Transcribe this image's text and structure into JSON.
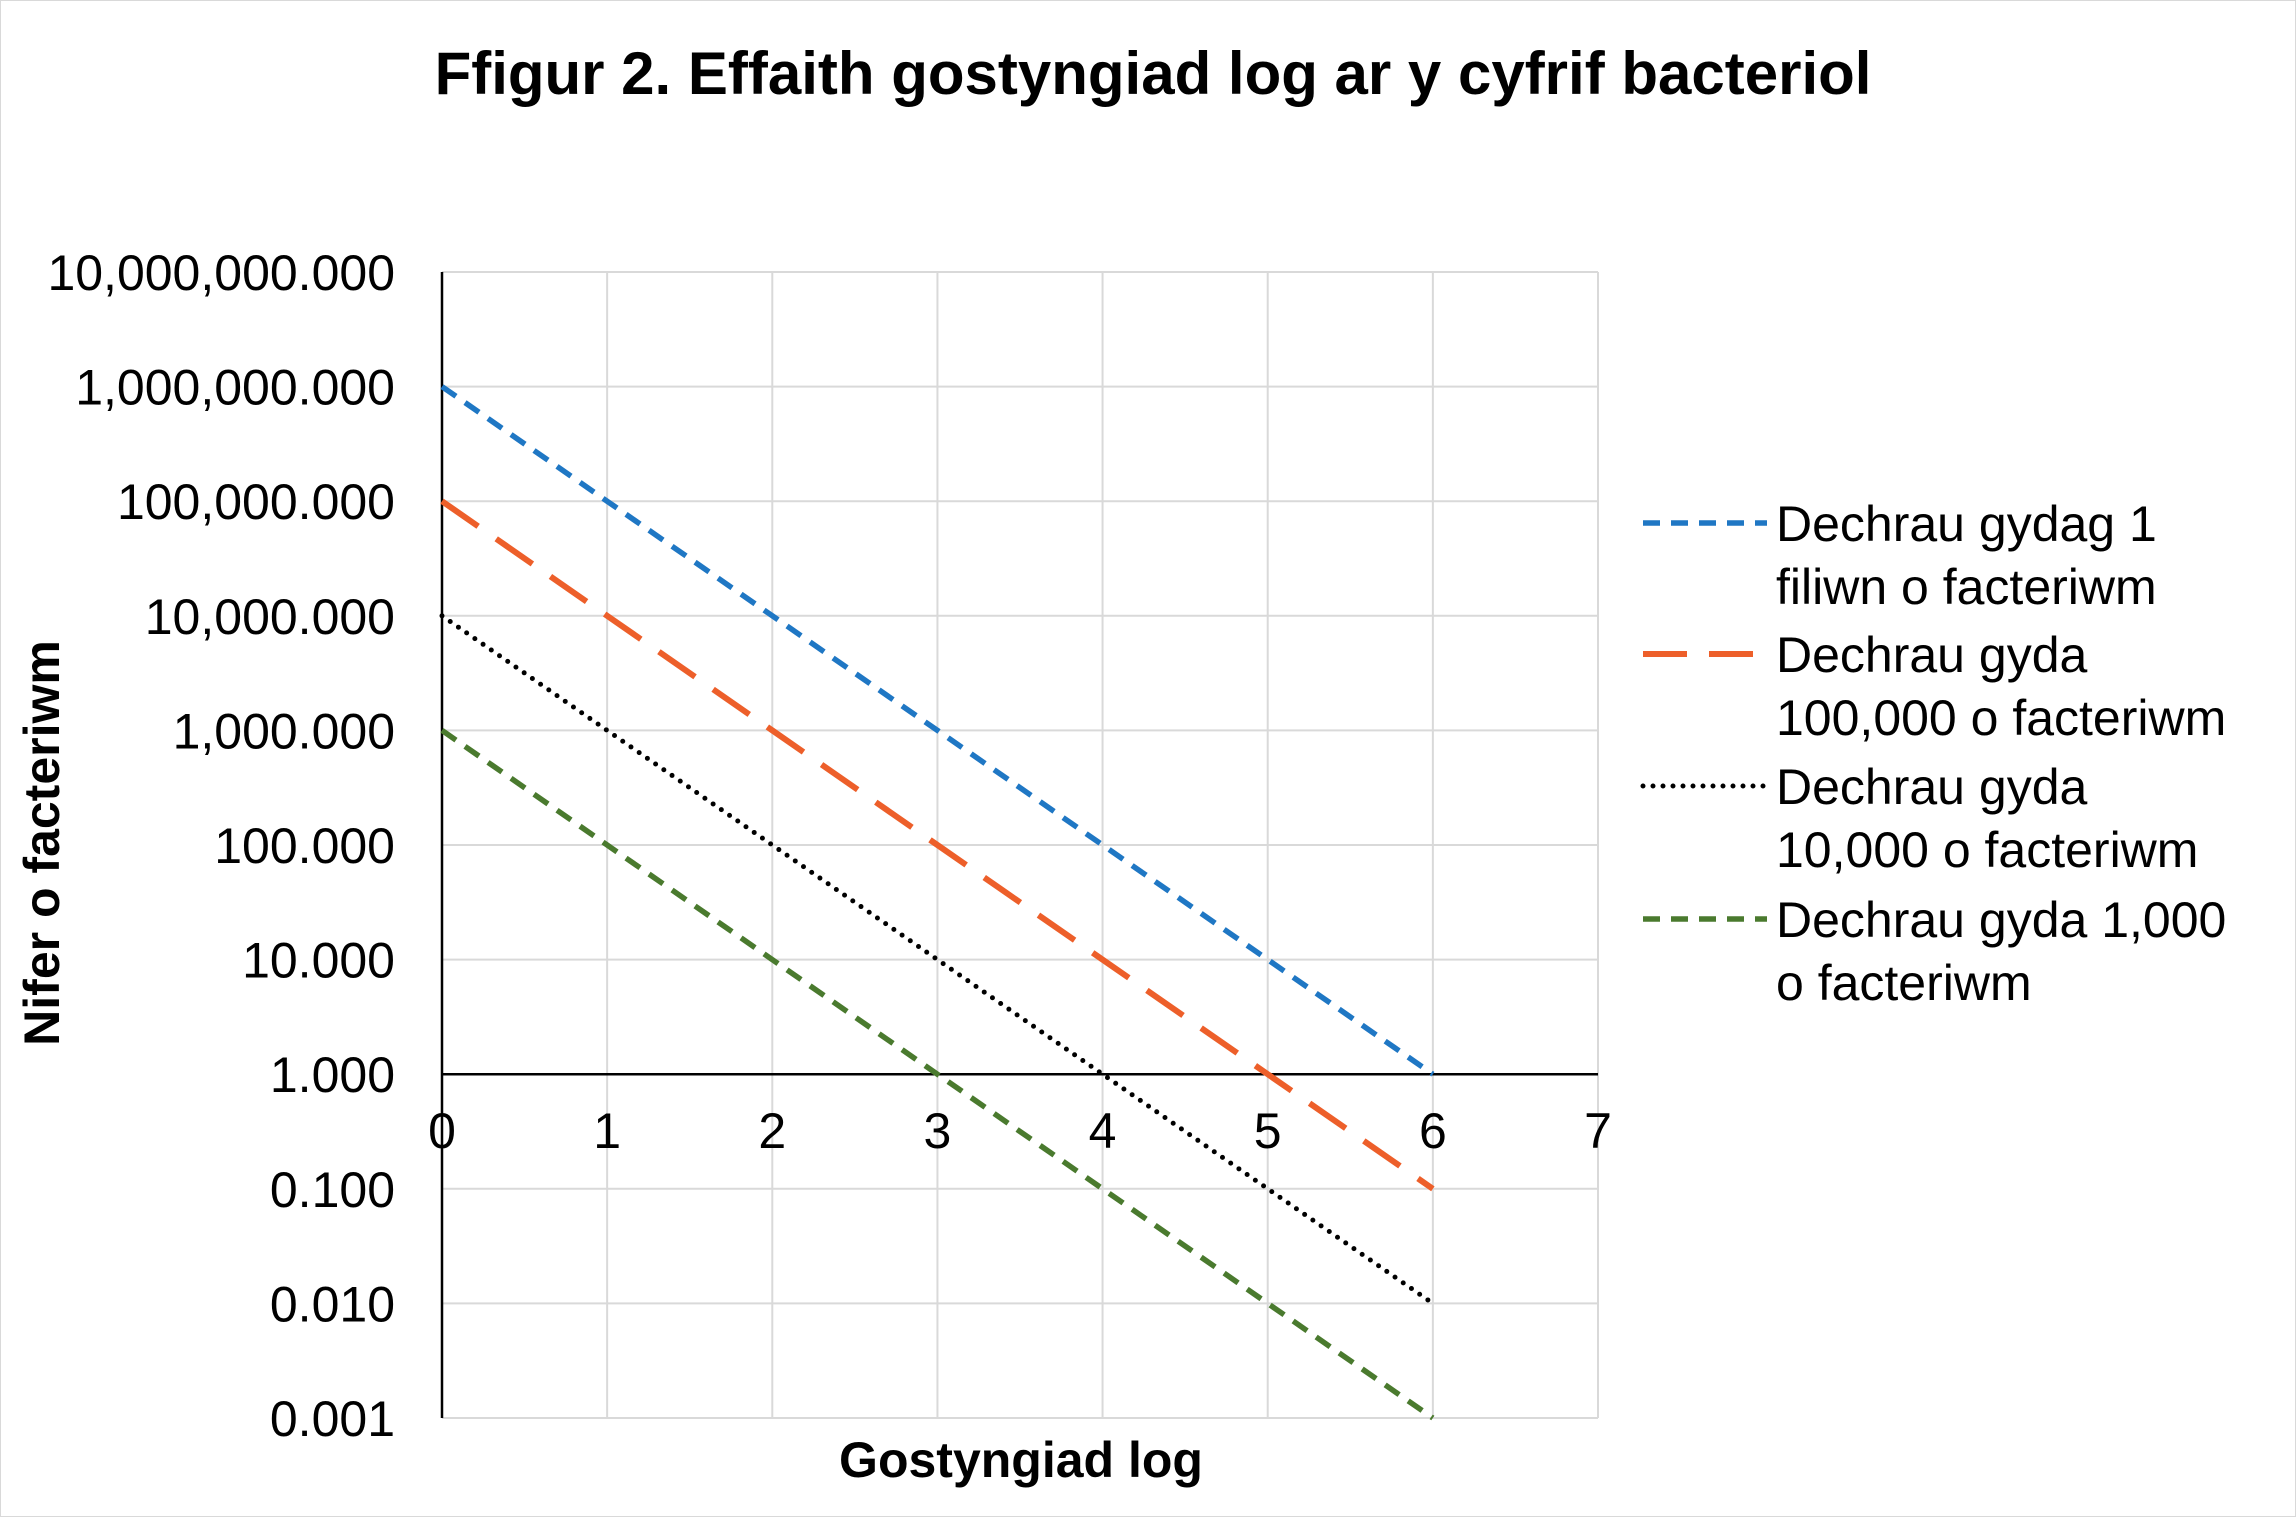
{
  "chart_data": {
    "type": "line",
    "title": "Ffigur 2. Effaith gostyngiad log ar y cyfrif bacteriol",
    "xlabel": "Gostyngiad log",
    "ylabel": "Nifer o facteriwm",
    "x_ticks": [
      "0",
      "1",
      "2",
      "3",
      "4",
      "5",
      "6",
      "7"
    ],
    "y_ticks": [
      "10,000,000.000",
      "1,000,000.000",
      "100,000.000",
      "10,000.000",
      "1,000.000",
      "100.000",
      "10.000",
      "1.000",
      "0.100",
      "0.010",
      "0.001"
    ],
    "xlim": [
      0,
      7
    ],
    "ylim": [
      0.001,
      10000000
    ],
    "yscale": "log",
    "x_axis_crosses_at": 1,
    "grid": true,
    "legend_position": "right",
    "x": [
      0,
      1,
      2,
      3,
      4,
      5,
      6
    ],
    "series": [
      {
        "name": "Dechrau gydag 1 filiwn o facteriwm",
        "legend_lines": [
          "Dechrau gydag 1",
          "filiwn o facteriwm"
        ],
        "color": "#1f77c4",
        "dash": "short-dash",
        "values": [
          1000000,
          100000,
          10000,
          1000,
          100,
          10,
          1
        ]
      },
      {
        "name": "Dechrau gyda 100,000 o facteriwm",
        "legend_lines": [
          "Dechrau gyda",
          "100,000 o facteriwm"
        ],
        "color": "#ed5f2a",
        "dash": "long-dash",
        "values": [
          100000,
          10000,
          1000,
          100,
          10,
          1,
          0.1
        ]
      },
      {
        "name": "Dechrau gyda 10,000 o facteriwm",
        "legend_lines": [
          "Dechrau gyda",
          "10,000 o facteriwm"
        ],
        "color": "#000000",
        "dash": "dot",
        "values": [
          10000,
          1000,
          100,
          10,
          1,
          0.1,
          0.01
        ]
      },
      {
        "name": "Dechrau gyda 1,000 o facteriwm",
        "legend_lines": [
          "Dechrau gyda 1,000",
          "o facteriwm"
        ],
        "color": "#4a7a2e",
        "dash": "short-dash",
        "values": [
          1000,
          100,
          10,
          1,
          0.1,
          0.01,
          0.001
        ]
      }
    ]
  }
}
